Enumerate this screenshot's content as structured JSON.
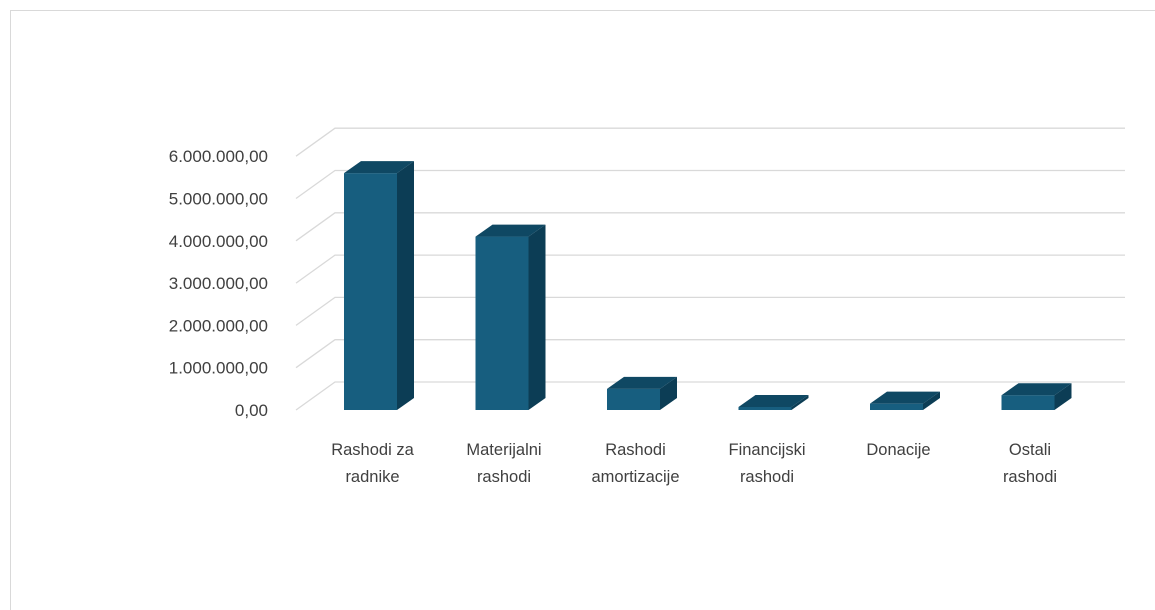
{
  "chart_data": {
    "type": "bar",
    "title": "",
    "xlabel": "",
    "ylabel": "",
    "categories": [
      [
        "Rashodi za",
        "radnike"
      ],
      [
        "Materijalni",
        "rashodi"
      ],
      [
        "Rashodi",
        "amortizacije"
      ],
      [
        "Financijski",
        "rashodi"
      ],
      [
        "Donacije"
      ],
      [
        "Ostali",
        "rashodi"
      ]
    ],
    "values": [
      5600000,
      4100000,
      500000,
      20000,
      150000,
      350000
    ],
    "ylim": [
      0,
      6000000
    ],
    "y_ticks": [
      "0,00",
      "1.000.000,00",
      "2.000.000,00",
      "3.000.000,00",
      "4.000.000,00",
      "5.000.000,00",
      "6.000.000,00"
    ],
    "grid": true,
    "three_d": true,
    "colors": {
      "front": "#175e7f",
      "side": "#0c3d55",
      "top": "#0f4863",
      "grid": "#d9d9d9",
      "text": "#404040"
    }
  }
}
